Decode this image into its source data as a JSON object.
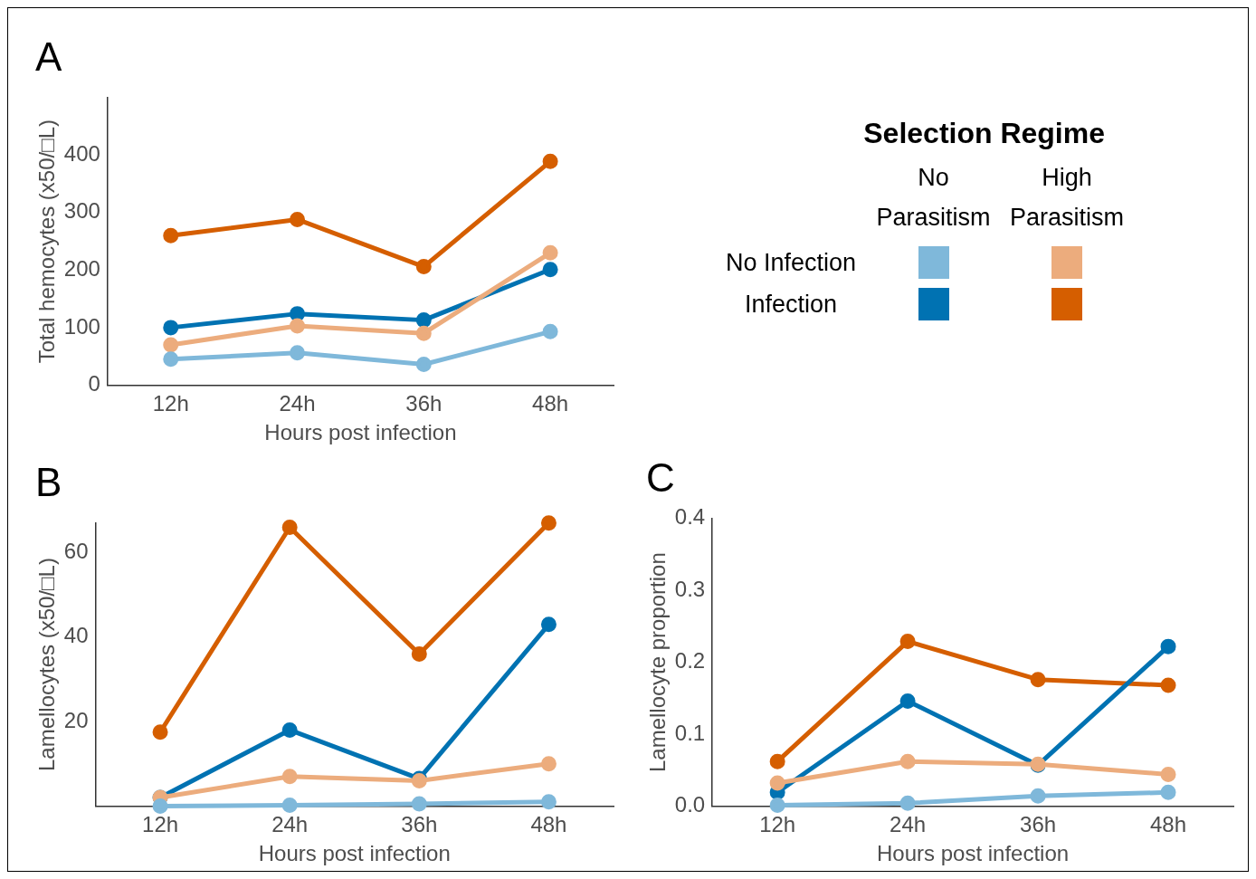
{
  "chart_data": [
    {
      "type": "line",
      "title": "A",
      "xlabel": "Hours post infection",
      "ylabel": "Total hemocytes (x50/□L)",
      "categories": [
        "12h",
        "24h",
        "36h",
        "48h"
      ],
      "ylim": [
        0,
        500
      ],
      "yticks": [
        0,
        100,
        200,
        300,
        400
      ],
      "marker": "circle",
      "line_style": "solid",
      "series": [
        {
          "color": "#7fb8da",
          "values": [
            45,
            56,
            36,
            93
          ]
        },
        {
          "color": "#ecac7d",
          "values": [
            70,
            103,
            90,
            230
          ]
        },
        {
          "color": "#0072b2",
          "values": [
            100,
            124,
            113,
            201
          ]
        },
        {
          "color": "#d55e00",
          "values": [
            260,
            288,
            206,
            389
          ]
        }
      ]
    },
    {
      "type": "line",
      "title": "B",
      "xlabel": "Hours post infection",
      "ylabel": "Lamellocytes (x50/□L)",
      "categories": [
        "12h",
        "24h",
        "36h",
        "48h"
      ],
      "ylim": [
        0,
        67
      ],
      "yticks": [
        20,
        40,
        60
      ],
      "marker": "circle",
      "line_style": "solid",
      "series": [
        {
          "color": "#7fb8da",
          "values": [
            0,
            0.2,
            0.5,
            1
          ]
        },
        {
          "color": "#ecac7d",
          "values": [
            2,
            7,
            6,
            10
          ]
        },
        {
          "color": "#0072b2",
          "values": [
            2,
            18,
            6.5,
            43
          ]
        },
        {
          "color": "#d55e00",
          "values": [
            17.5,
            66,
            36,
            67
          ]
        }
      ]
    },
    {
      "type": "line",
      "title": "C",
      "xlabel": "Hours post infection",
      "ylabel": "Lamellocyte proportion",
      "categories": [
        "12h",
        "24h",
        "36h",
        "48h"
      ],
      "ylim": [
        0,
        0.4
      ],
      "yticks": [
        {
          "value": 0,
          "label": "0.0"
        },
        {
          "value": 0.1,
          "label": "0.1"
        },
        {
          "value": 0.2,
          "label": "0.2"
        },
        {
          "value": 0.3,
          "label": "0.3"
        },
        {
          "value": 0.4,
          "label": "0.4"
        }
      ],
      "marker": "circle",
      "line_style": "solid",
      "series": [
        {
          "color": "#7fb8da",
          "values": [
            0.001,
            0.004,
            0.014,
            0.019
          ]
        },
        {
          "color": "#ecac7d",
          "values": [
            0.032,
            0.062,
            0.058,
            0.044
          ]
        },
        {
          "color": "#0072b2",
          "values": [
            0.019,
            0.146,
            0.057,
            0.222
          ]
        },
        {
          "color": "#d55e00",
          "values": [
            0.062,
            0.229,
            0.176,
            0.168
          ]
        }
      ]
    },
    {
      "type": "other",
      "title": "Selection Regime",
      "annotations": [
        "No Parasitism",
        "High Parasitism",
        "No Infection",
        "Infection"
      ],
      "colors": [
        "#7fb8da",
        "#ecac7d",
        "#0072b2",
        "#d55e00"
      ]
    }
  ]
}
